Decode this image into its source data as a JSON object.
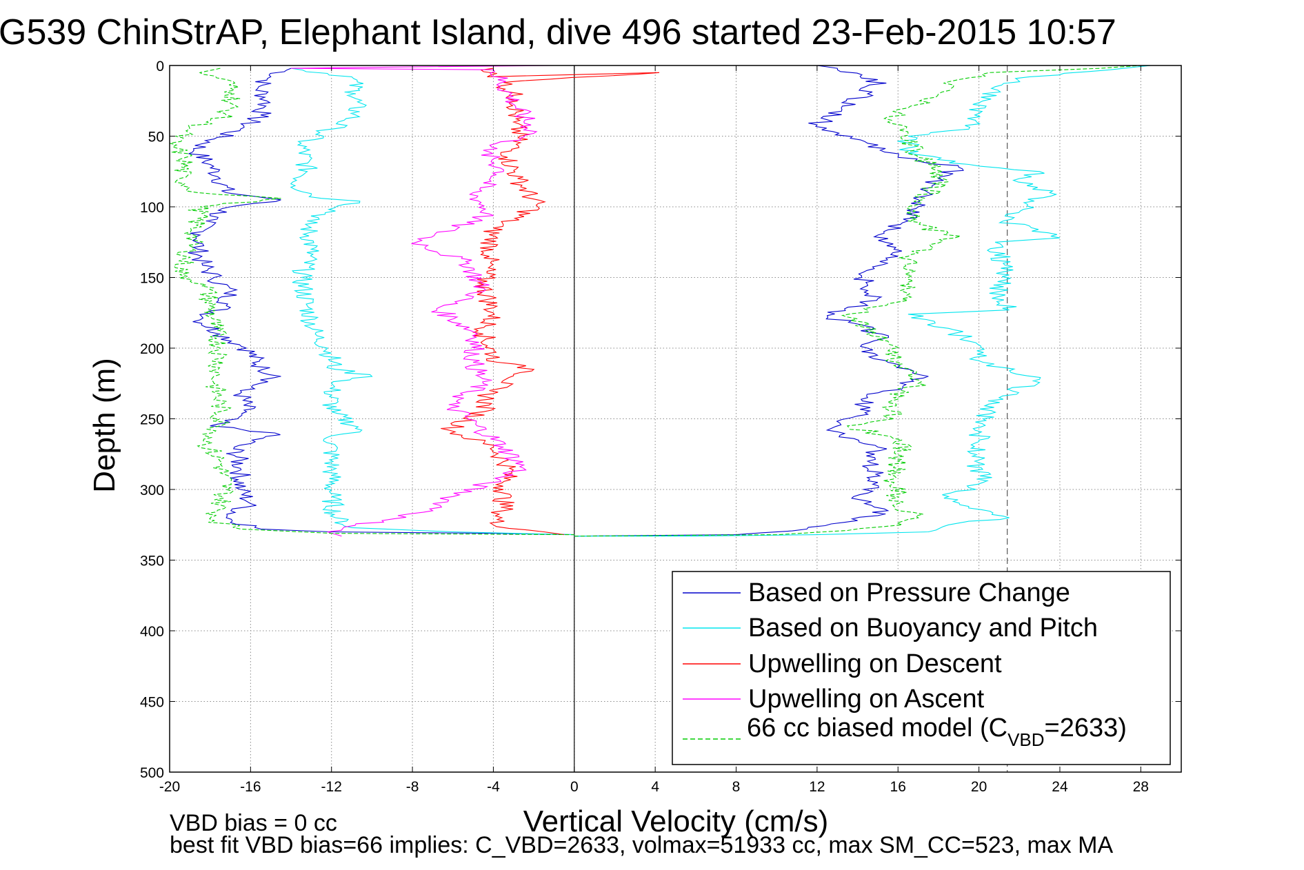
{
  "chart_data": {
    "type": "line",
    "title": "G539 ChinStrAP, Elephant Island, dive 496 started 23-Feb-2015 10:57",
    "xlabel": "Vertical Velocity (cm/s)",
    "ylabel": "Depth (m)",
    "xlim": [
      -20,
      30
    ],
    "ylim": [
      500,
      0
    ],
    "x_ticks": [
      -20,
      -16,
      -12,
      -8,
      -4,
      0,
      4,
      8,
      12,
      16,
      20,
      24,
      28
    ],
    "y_ticks": [
      0,
      50,
      100,
      150,
      200,
      250,
      300,
      350,
      400,
      450,
      500
    ],
    "grid": true,
    "legend_position": "bottom-right",
    "notes": [
      "VBD bias = 0 cc",
      "best fit VBD bias=66 implies: C_VBD=2633, volmax=51933 cc, max SM_CC=523, max MA"
    ],
    "reference_lines": [
      {
        "orientation": "vertical",
        "x": 0,
        "style": "solid",
        "color": "#000000"
      },
      {
        "orientation": "vertical",
        "x": 21.4,
        "style": "dashed",
        "color": "#555555"
      }
    ],
    "legend": {
      "entries": [
        {
          "label": "Based on Pressure Change",
          "color": "#0000cc",
          "dash": "solid"
        },
        {
          "label": "Based on Buoyancy and Pitch",
          "color": "#00e5ee",
          "dash": "solid"
        },
        {
          "label": "Upwelling on Descent",
          "color": "#ff0000",
          "dash": "solid"
        },
        {
          "label": "Upwelling on Ascent",
          "color": "#ff00ff",
          "dash": "solid"
        },
        {
          "label_main": "66 cc biased model (C",
          "label_sub": "VBD",
          "label_tail": "=2633)",
          "color": "#00cc00",
          "dash": "dashed"
        }
      ]
    },
    "series": [
      {
        "name": "Based on Pressure Change",
        "color": "#0000cc",
        "points": [
          [
            -14,
            2
          ],
          [
            -15,
            8
          ],
          [
            -15.6,
            15
          ],
          [
            -15.2,
            25
          ],
          [
            -15.5,
            35
          ],
          [
            -16.5,
            45
          ],
          [
            -17.8,
            52
          ],
          [
            -18.8,
            60
          ],
          [
            -18,
            70
          ],
          [
            -17.5,
            80
          ],
          [
            -17.2,
            90
          ],
          [
            -14.5,
            95
          ],
          [
            -17,
            100
          ],
          [
            -18.2,
            110
          ],
          [
            -18.5,
            120
          ],
          [
            -18.6,
            130
          ],
          [
            -18.4,
            140
          ],
          [
            -17.8,
            150
          ],
          [
            -17,
            160
          ],
          [
            -17.2,
            170
          ],
          [
            -18.5,
            180
          ],
          [
            -17.5,
            190
          ],
          [
            -16.2,
            200
          ],
          [
            -15.4,
            215
          ],
          [
            -14.5,
            220
          ],
          [
            -16.5,
            230
          ],
          [
            -16.2,
            245
          ],
          [
            -18,
            255
          ],
          [
            -14.8,
            260
          ],
          [
            -16.8,
            270
          ],
          [
            -16.5,
            285
          ],
          [
            -16.5,
            300
          ],
          [
            -16,
            310
          ],
          [
            -17.2,
            320
          ],
          [
            -15.5,
            328
          ],
          [
            -12,
            330
          ],
          [
            -4,
            331
          ],
          [
            0,
            332
          ]
        ]
      },
      {
        "name": "Based on Pressure Change",
        "color": "#0000cc",
        "points": [
          [
            0,
            333
          ],
          [
            8,
            332
          ],
          [
            11.5,
            328
          ],
          [
            14,
            322
          ],
          [
            15.5,
            315
          ],
          [
            13.8,
            305
          ],
          [
            15,
            295
          ],
          [
            14.5,
            280
          ],
          [
            15,
            270
          ],
          [
            12.5,
            258
          ],
          [
            14,
            248
          ],
          [
            14.5,
            235
          ],
          [
            17.5,
            220
          ],
          [
            15.5,
            210
          ],
          [
            14.5,
            200
          ],
          [
            15.2,
            190
          ],
          [
            12.5,
            177
          ],
          [
            15,
            165
          ],
          [
            14.2,
            150
          ],
          [
            15.5,
            140
          ],
          [
            15.8,
            130
          ],
          [
            15,
            120
          ],
          [
            16.5,
            110
          ],
          [
            17,
            100
          ],
          [
            17.5,
            90
          ],
          [
            18,
            80
          ],
          [
            19,
            72
          ],
          [
            16,
            65
          ],
          [
            14.5,
            55
          ],
          [
            12,
            42
          ],
          [
            13.2,
            30
          ],
          [
            14.5,
            20
          ],
          [
            15,
            10
          ],
          [
            13,
            2
          ],
          [
            12,
            0
          ]
        ]
      },
      {
        "name": "Based on Buoyancy and Pitch",
        "color": "#00e5ee",
        "points": [
          [
            -14,
            2
          ],
          [
            -11,
            8
          ],
          [
            -10.8,
            20
          ],
          [
            -10.8,
            35
          ],
          [
            -12,
            45
          ],
          [
            -13.5,
            55
          ],
          [
            -13.2,
            75
          ],
          [
            -13.8,
            85
          ],
          [
            -12.5,
            94
          ],
          [
            -10.6,
            96
          ],
          [
            -13.2,
            110
          ],
          [
            -13,
            130
          ],
          [
            -13.5,
            150
          ],
          [
            -13.2,
            170
          ],
          [
            -12.8,
            190
          ],
          [
            -12.2,
            200
          ],
          [
            -11.8,
            215
          ],
          [
            -10,
            220
          ],
          [
            -12,
            225
          ],
          [
            -12,
            245
          ],
          [
            -10.5,
            258
          ],
          [
            -12,
            262
          ],
          [
            -12,
            290
          ],
          [
            -12,
            305
          ],
          [
            -11.8,
            320
          ],
          [
            -11,
            327
          ],
          [
            -6,
            330
          ],
          [
            0,
            332
          ]
        ]
      },
      {
        "name": "Based on Buoyancy and Pitch",
        "color": "#00e5ee",
        "points": [
          [
            0,
            333
          ],
          [
            6,
            333
          ],
          [
            12,
            332
          ],
          [
            17.5,
            330
          ],
          [
            18.5,
            325
          ],
          [
            21.5,
            320
          ],
          [
            19.5,
            312
          ],
          [
            18.5,
            305
          ],
          [
            20.2,
            295
          ],
          [
            19.8,
            280
          ],
          [
            20,
            265
          ],
          [
            20.2,
            250
          ],
          [
            21,
            235
          ],
          [
            23,
            222
          ],
          [
            20.2,
            210
          ],
          [
            19.5,
            195
          ],
          [
            18.5,
            186
          ],
          [
            16.5,
            176
          ],
          [
            21.5,
            173
          ],
          [
            21,
            160
          ],
          [
            21.2,
            140
          ],
          [
            20.8,
            125
          ],
          [
            24,
            122
          ],
          [
            21.2,
            110
          ],
          [
            23.5,
            90
          ],
          [
            22,
            80
          ],
          [
            23,
            75
          ],
          [
            19.5,
            70
          ],
          [
            16.5,
            62
          ],
          [
            16.5,
            50
          ],
          [
            19.5,
            45
          ],
          [
            19.8,
            35
          ],
          [
            20.2,
            25
          ],
          [
            20.8,
            15
          ],
          [
            22.5,
            8
          ],
          [
            26.5,
            3
          ],
          [
            28.5,
            0
          ]
        ]
      },
      {
        "name": "Upwelling on Descent",
        "color": "#ff0000",
        "points": [
          [
            -4,
            2
          ],
          [
            -4.3,
            8
          ],
          [
            4.2,
            5
          ],
          [
            -3.5,
            12
          ],
          [
            -2.8,
            25
          ],
          [
            -3,
            40
          ],
          [
            -2.7,
            50
          ],
          [
            -3.3,
            65
          ],
          [
            -2.8,
            80
          ],
          [
            -1.8,
            100
          ],
          [
            -4,
            115
          ],
          [
            -4.2,
            135
          ],
          [
            -4.5,
            155
          ],
          [
            -4,
            175
          ],
          [
            -4.5,
            190
          ],
          [
            -3.8,
            210
          ],
          [
            -2,
            215
          ],
          [
            -4.2,
            230
          ],
          [
            -4.5,
            245
          ],
          [
            -6.2,
            258
          ],
          [
            -4,
            270
          ],
          [
            -3.2,
            285
          ],
          [
            -3.5,
            300
          ],
          [
            -3.5,
            315
          ],
          [
            -4,
            325
          ],
          [
            -1.5,
            330
          ],
          [
            -0.5,
            332
          ]
        ]
      },
      {
        "name": "Upwelling on Ascent",
        "color": "#ff00ff",
        "points": [
          [
            -1,
            0
          ],
          [
            -8,
            1
          ],
          [
            -14,
            2
          ],
          [
            -4,
            3
          ],
          [
            -2,
            48
          ],
          [
            -4.5,
            60
          ],
          [
            -3.5,
            75
          ],
          [
            -5,
            90
          ],
          [
            -4.2,
            105
          ],
          [
            -7.8,
            125
          ],
          [
            -5.2,
            140
          ],
          [
            -4.5,
            160
          ],
          [
            -6.8,
            172
          ],
          [
            -4.8,
            190
          ],
          [
            -5,
            210
          ],
          [
            -4.5,
            225
          ],
          [
            -6.2,
            240
          ],
          [
            -4.8,
            255
          ],
          [
            -3.5,
            270
          ],
          [
            -2.5,
            285
          ],
          [
            -6,
            305
          ],
          [
            -7,
            315
          ],
          [
            -9.5,
            322
          ],
          [
            -12.2,
            330
          ],
          [
            -11.5,
            333
          ]
        ]
      },
      {
        "name": "66 cc biased model",
        "color": "#00cc00",
        "dashed": true,
        "points": [
          [
            -17.5,
            2
          ],
          [
            -18.5,
            5
          ],
          [
            -17.2,
            10
          ],
          [
            -16.8,
            20
          ],
          [
            -17.2,
            35
          ],
          [
            -19,
            45
          ],
          [
            -20,
            55
          ],
          [
            -19.2,
            65
          ],
          [
            -19.5,
            80
          ],
          [
            -18.6,
            90
          ],
          [
            -14.5,
            94
          ],
          [
            -18.5,
            100
          ],
          [
            -18.8,
            120
          ],
          [
            -19.5,
            148
          ],
          [
            -18.2,
            155
          ],
          [
            -18,
            170
          ],
          [
            -17.8,
            185
          ],
          [
            -17.5,
            200
          ],
          [
            -17.6,
            215
          ],
          [
            -17.8,
            225
          ],
          [
            -17.5,
            240
          ],
          [
            -17.5,
            255
          ],
          [
            -18.2,
            268
          ],
          [
            -17.5,
            280
          ],
          [
            -17.2,
            300
          ],
          [
            -17.8,
            322
          ],
          [
            -16.5,
            328
          ],
          [
            -12,
            331
          ],
          [
            0,
            332
          ]
        ]
      },
      {
        "name": "66 cc biased model",
        "color": "#00cc00",
        "dashed": true,
        "points": [
          [
            0,
            333
          ],
          [
            10,
            332
          ],
          [
            13.5,
            329
          ],
          [
            16.2,
            325
          ],
          [
            17,
            320
          ],
          [
            16,
            310
          ],
          [
            15.8,
            295
          ],
          [
            16,
            280
          ],
          [
            16.2,
            265
          ],
          [
            13.5,
            255
          ],
          [
            15.8,
            250
          ],
          [
            15.8,
            235
          ],
          [
            17,
            225
          ],
          [
            16,
            210
          ],
          [
            15.5,
            195
          ],
          [
            13.5,
            178
          ],
          [
            16.2,
            165
          ],
          [
            16.5,
            150
          ],
          [
            16.5,
            135
          ],
          [
            18.8,
            122
          ],
          [
            16.5,
            110
          ],
          [
            17.2,
            95
          ],
          [
            18.2,
            80
          ],
          [
            17.5,
            70
          ],
          [
            16.8,
            60
          ],
          [
            16.5,
            48
          ],
          [
            15.5,
            40
          ],
          [
            16.5,
            30
          ],
          [
            18,
            20
          ],
          [
            19,
            10
          ],
          [
            20.5,
            5
          ],
          [
            26,
            2
          ],
          [
            28,
            0
          ]
        ]
      }
    ]
  }
}
